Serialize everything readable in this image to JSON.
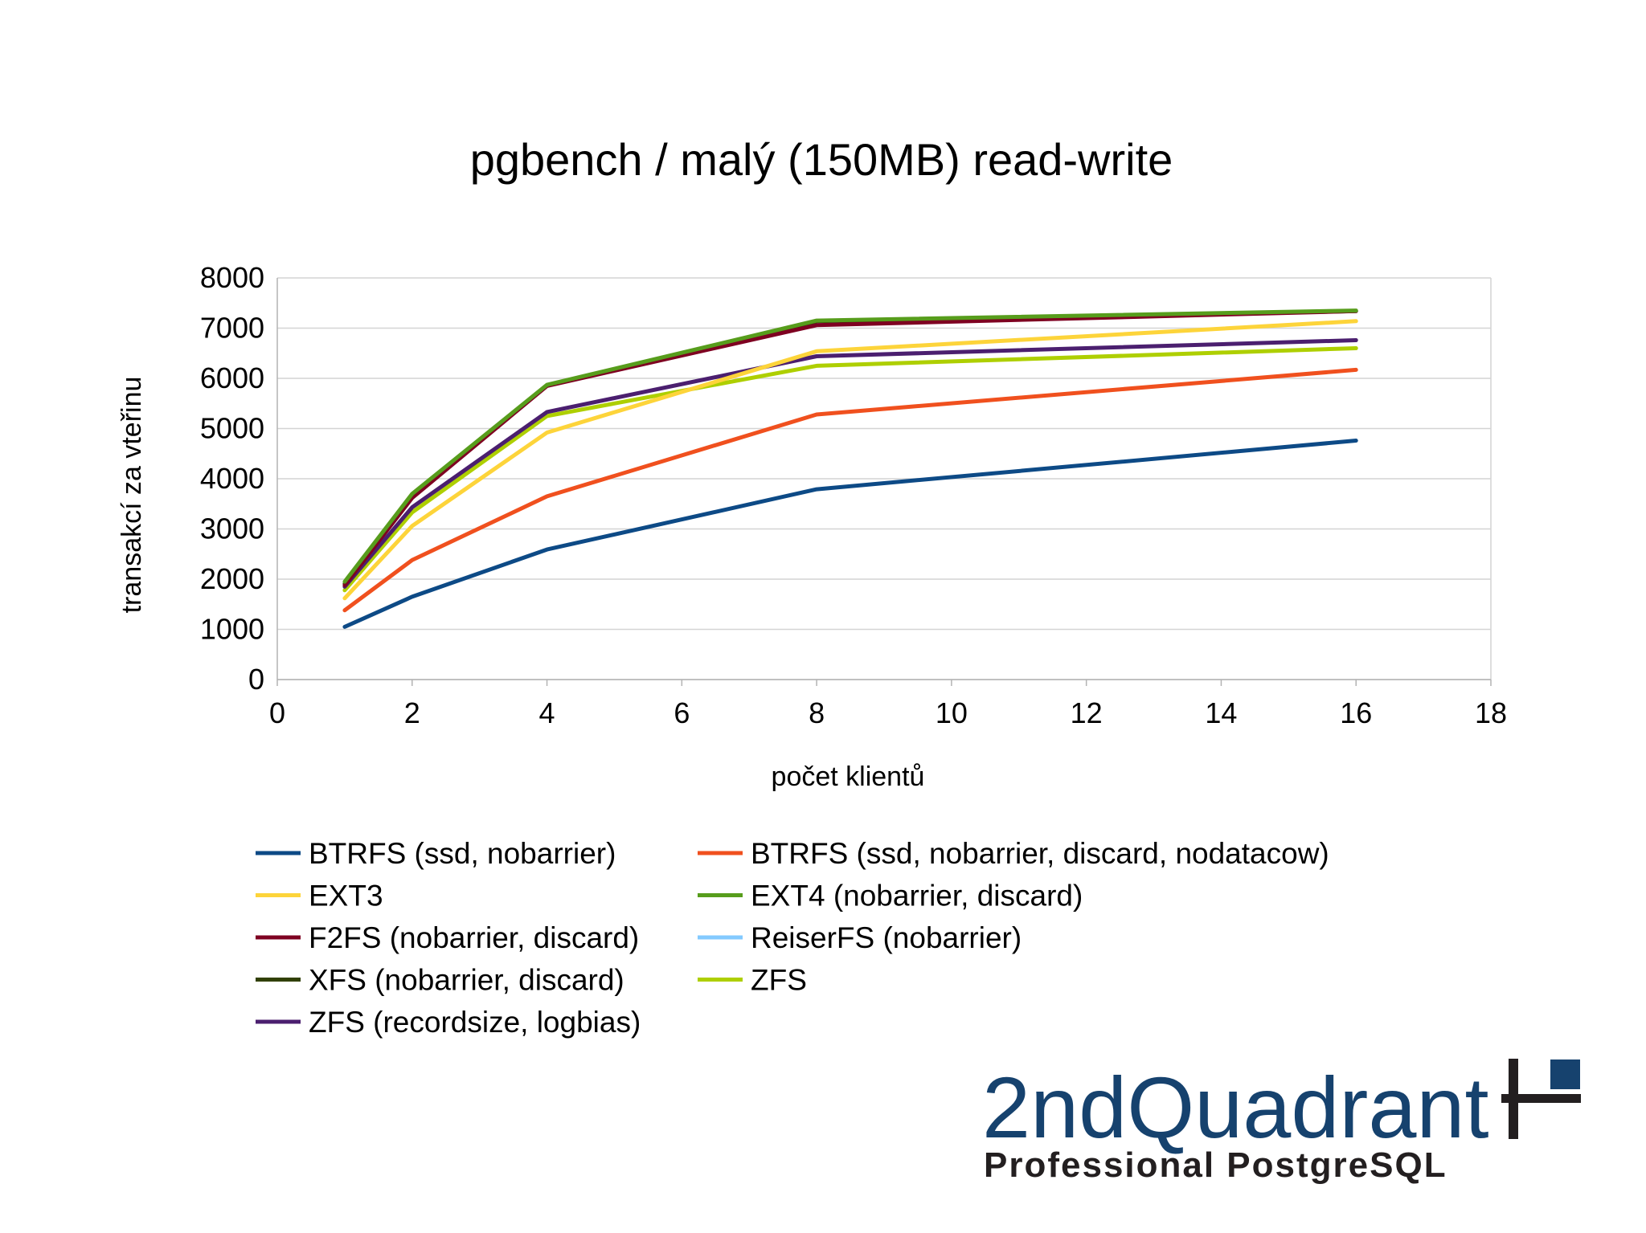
{
  "chart_data": {
    "type": "line",
    "title": "pgbench / malý (150MB) read-write",
    "xlabel": "počet klientů",
    "ylabel": "transakcí za vteřinu",
    "xlim": [
      0,
      18
    ],
    "ylim": [
      0,
      8000
    ],
    "xticks": [
      "0",
      "2",
      "4",
      "6",
      "8",
      "10",
      "12",
      "14",
      "16",
      "18"
    ],
    "yticks": [
      "0",
      "1000",
      "2000",
      "3000",
      "4000",
      "5000",
      "6000",
      "7000",
      "8000"
    ],
    "grid": "horizontal",
    "legend_position": "bottom",
    "x": [
      1,
      2,
      4,
      8,
      16
    ],
    "series": [
      {
        "name": "BTRFS (ssd, nobarrier)",
        "color": "#0d4a86",
        "values": [
          1050,
          1650,
          2590,
          3790,
          4760
        ]
      },
      {
        "name": "BTRFS (ssd, nobarrier, discard, nodatacow)",
        "color": "#f0501e",
        "values": [
          1380,
          2380,
          3650,
          5280,
          6170
        ]
      },
      {
        "name": "EXT3",
        "color": "#fdd43a",
        "values": [
          1620,
          3060,
          4920,
          6540,
          7140
        ]
      },
      {
        "name": "EXT4 (nobarrier, discard)",
        "color": "#579d1c",
        "values": [
          1950,
          3700,
          5870,
          7150,
          7350
        ]
      },
      {
        "name": "F2FS (nobarrier, discard)",
        "color": "#7e0021",
        "values": [
          1880,
          3620,
          5850,
          7060,
          7340
        ]
      },
      {
        "name": "ReiserFS (nobarrier)",
        "color": "#83caff",
        "values": [
          1900,
          3640,
          5860,
          7120,
          7340
        ]
      },
      {
        "name": "XFS (nobarrier, discard)",
        "color": "#314004",
        "values": [
          1910,
          3680,
          5860,
          7140,
          7340
        ]
      },
      {
        "name": "ZFS",
        "color": "#aecf00",
        "values": [
          1780,
          3330,
          5250,
          6250,
          6600
        ]
      },
      {
        "name": "ZFS (recordsize, logbias)",
        "color": "#4b1f6f",
        "values": [
          1850,
          3430,
          5330,
          6440,
          6760
        ]
      }
    ]
  },
  "logo": {
    "name": "2ndQuadrant",
    "tagline": "Professional PostgreSQL",
    "primary_color": "#16426e",
    "secondary_color": "#231f20"
  }
}
